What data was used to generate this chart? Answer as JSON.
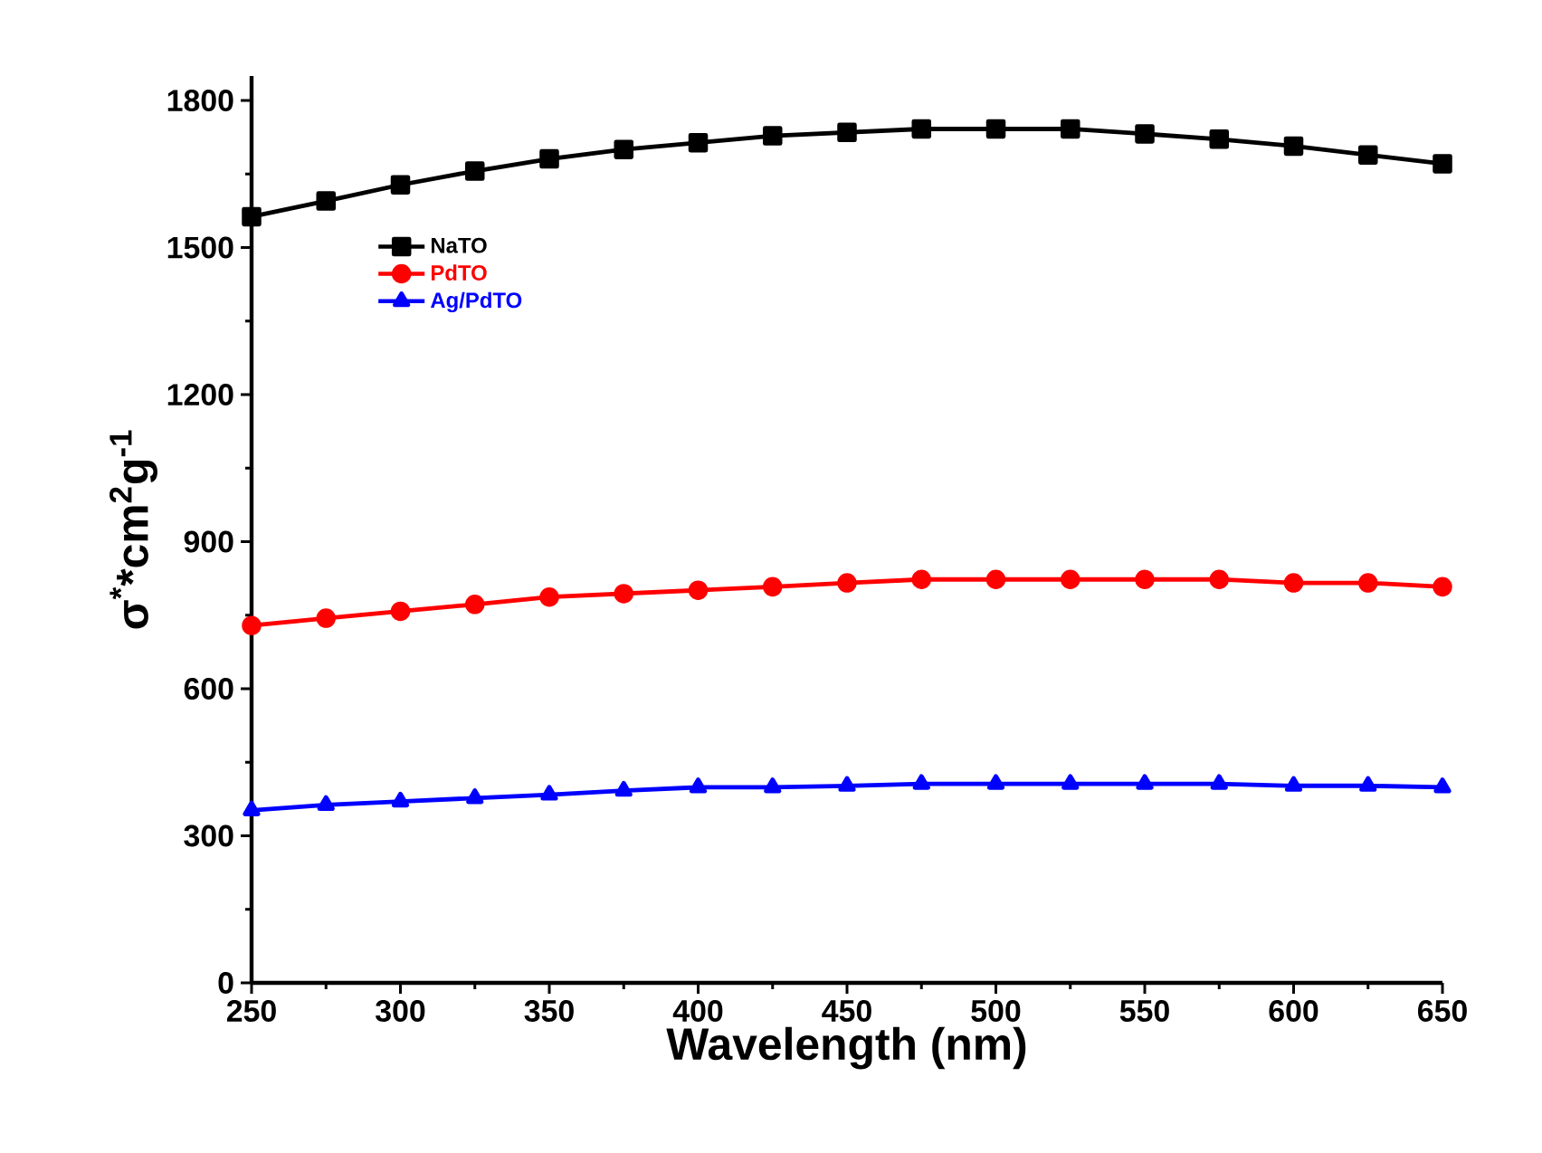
{
  "chart_data": {
    "type": "line",
    "xlabel": "Wavelength (nm)",
    "ylabel": "σ$^{*}$*cm$^{2}$g$^{-1}$",
    "x": [
      250,
      275,
      300,
      325,
      350,
      375,
      400,
      425,
      450,
      475,
      500,
      525,
      550,
      575,
      600,
      625,
      650
    ],
    "series": [
      {
        "name": "NaTO",
        "color": "#000000",
        "marker": "square",
        "values": [
          1563,
          1595,
          1628,
          1656,
          1681,
          1700,
          1714,
          1728,
          1735,
          1742,
          1742,
          1742,
          1732,
          1721,
          1707,
          1689,
          1671
        ]
      },
      {
        "name": "PdTO",
        "color": "#ff0000",
        "marker": "circle",
        "values": [
          729,
          744,
          758,
          772,
          787,
          794,
          801,
          808,
          816,
          823,
          823,
          823,
          823,
          823,
          816,
          816,
          808
        ]
      },
      {
        "name": "Ag/PdTO",
        "color": "#0000ff",
        "marker": "triangle",
        "values": [
          352,
          363,
          370,
          377,
          384,
          392,
          399,
          399,
          402,
          406,
          406,
          406,
          406,
          406,
          402,
          402,
          399
        ]
      }
    ],
    "xlim": [
      250,
      650
    ],
    "ylim": [
      0,
      1850
    ],
    "xticks": [
      250,
      300,
      350,
      400,
      450,
      500,
      550,
      600,
      650
    ],
    "yticks": [
      0,
      300,
      600,
      900,
      1200,
      1500,
      1800
    ],
    "grid": false,
    "legend": "top left",
    "line_style": "solid"
  }
}
